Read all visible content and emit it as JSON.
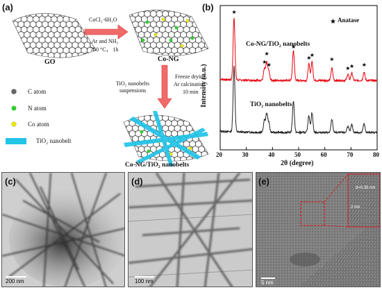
{
  "panel_a": {
    "label": "(a)",
    "go_label": "GO",
    "step1_reagent": "CoCl₂·6H₂O",
    "step1_cond1": "Ar and NH₃",
    "step1_cond2": "750 °C， 1h",
    "cong_label": "Co-NG",
    "step2_left1": "TiO₂ nanobelts",
    "step2_left2": "suspensions",
    "step2_right1": "Freeze drying",
    "step2_right2": "Ar calcination",
    "step2_right3": "10 min",
    "product_label": "Co-NG/TiO₂ nanobelts",
    "legend": [
      {
        "label": "C  atom",
        "color": "#666666"
      },
      {
        "label": "N  atom",
        "color": "#33cc33"
      },
      {
        "label": "Co atom",
        "color": "#e8e800"
      },
      {
        "label": "TiO₂ nanobelt",
        "color": "#22c4e8"
      }
    ]
  },
  "panel_b": {
    "label": "(b)",
    "legend_text": "Anatase",
    "series_top_label": "Co-NG/TiO₂ nanobelts",
    "series_bottom_label": "TiO₂ nanobelts"
  },
  "chart_data": {
    "type": "line",
    "xlabel": "2θ (degree)",
    "ylabel": "Intensity (a.u.)",
    "xlim": [
      20,
      80
    ],
    "xticks": [
      "20",
      "30",
      "40",
      "50",
      "60",
      "70",
      "80"
    ],
    "series": [
      {
        "name": "Co-NG/TiO₂ nanobelts",
        "color": "#e8000b",
        "peaks": [
          25.3,
          36.9,
          37.8,
          38.6,
          48.0,
          53.9,
          55.1,
          62.7,
          68.8,
          70.3,
          75.0
        ]
      },
      {
        "name": "TiO₂ nanobelts",
        "color": "#222222",
        "peaks": [
          25.3,
          36.9,
          37.8,
          38.6,
          48.0,
          53.9,
          55.1,
          62.7,
          68.8,
          70.3,
          75.0
        ]
      }
    ],
    "anatase_marks": [
      25.3,
      36.9,
      37.8,
      38.6,
      48.0,
      53.9,
      55.1,
      62.7,
      68.8,
      70.3,
      75.0
    ]
  },
  "panel_c": {
    "label": "(c)",
    "scale": "200 nm"
  },
  "panel_d": {
    "label": "(d)",
    "scale": "100 nm"
  },
  "panel_e": {
    "label": "(e)",
    "scale": "5 nm",
    "inset_scale": "2 nm",
    "d_spacing": "d=0.35 nm"
  }
}
